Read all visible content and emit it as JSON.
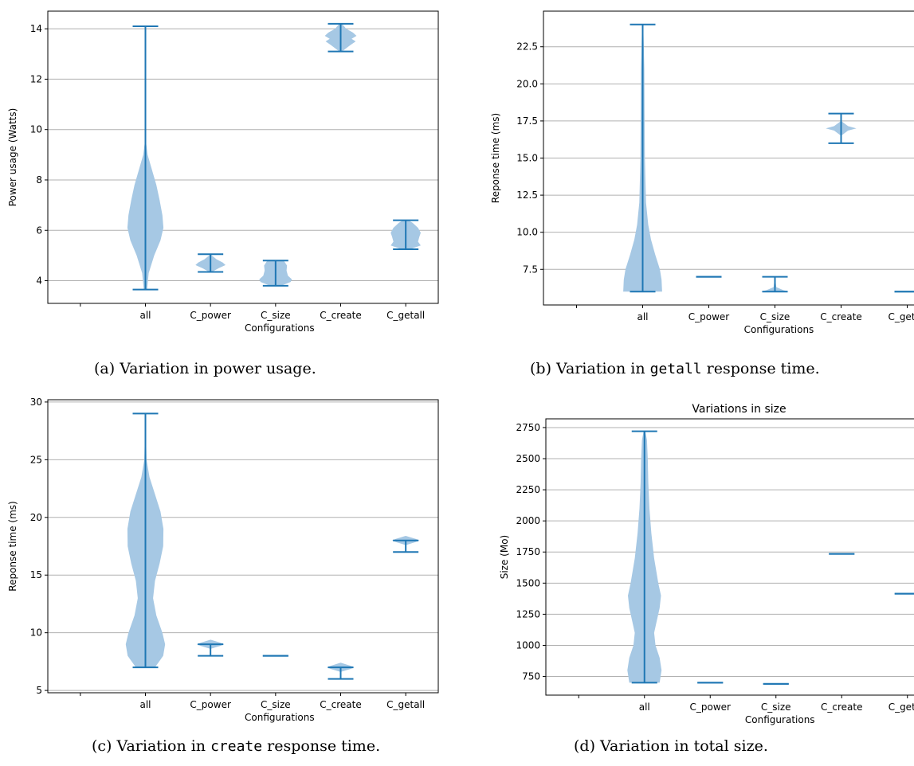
{
  "chart_data": [
    {
      "type": "violin",
      "ylabel": "Power usage (Watts)",
      "xlabel": "Configurations",
      "categories": [
        "all",
        "C_power",
        "C_size",
        "C_create",
        "C_getall"
      ],
      "ylim": [
        3.1,
        14.7
      ],
      "yticks": [
        4,
        6,
        8,
        10,
        12,
        14
      ],
      "ytick_labels": [
        "4",
        "6",
        "8",
        "10",
        "12",
        "14"
      ],
      "grid": "horizontal",
      "series": [
        {
          "min": 3.65,
          "max": 14.1,
          "median": 6.3,
          "density": [
            [
              3.65,
              0.06
            ],
            [
              4.3,
              0.12
            ],
            [
              5.0,
              0.32
            ],
            [
              5.6,
              0.55
            ],
            [
              6.1,
              0.66
            ],
            [
              6.6,
              0.62
            ],
            [
              7.2,
              0.52
            ],
            [
              7.8,
              0.4
            ],
            [
              8.4,
              0.24
            ],
            [
              9.0,
              0.08
            ],
            [
              9.6,
              0.01
            ],
            [
              14.1,
              0.0
            ]
          ]
        },
        {
          "min": 4.35,
          "max": 5.05,
          "median": 4.65,
          "density": [
            [
              4.35,
              0.05
            ],
            [
              4.5,
              0.3
            ],
            [
              4.62,
              0.55
            ],
            [
              4.72,
              0.45
            ],
            [
              4.85,
              0.22
            ],
            [
              5.0,
              0.05
            ],
            [
              5.05,
              0.0
            ]
          ]
        },
        {
          "min": 3.8,
          "max": 4.8,
          "median": 4.2,
          "density": [
            [
              3.8,
              0.2
            ],
            [
              3.95,
              0.55
            ],
            [
              4.05,
              0.6
            ],
            [
              4.2,
              0.45
            ],
            [
              4.4,
              0.4
            ],
            [
              4.6,
              0.42
            ],
            [
              4.8,
              0.3
            ]
          ]
        },
        {
          "min": 13.1,
          "max": 14.2,
          "median": 13.6,
          "density": [
            [
              13.1,
              0.05
            ],
            [
              13.35,
              0.35
            ],
            [
              13.5,
              0.55
            ],
            [
              13.6,
              0.4
            ],
            [
              13.72,
              0.58
            ],
            [
              13.85,
              0.45
            ],
            [
              14.0,
              0.2
            ],
            [
              14.2,
              0.05
            ]
          ]
        },
        {
          "min": 5.25,
          "max": 6.4,
          "median": 5.8,
          "density": [
            [
              5.25,
              0.15
            ],
            [
              5.4,
              0.55
            ],
            [
              5.55,
              0.45
            ],
            [
              5.75,
              0.5
            ],
            [
              5.9,
              0.55
            ],
            [
              6.1,
              0.45
            ],
            [
              6.3,
              0.25
            ],
            [
              6.4,
              0.1
            ]
          ]
        }
      ]
    },
    {
      "type": "violin",
      "ylabel": "Reponse time (ms)",
      "xlabel": "Configurations",
      "categories": [
        "all",
        "C_power",
        "C_size",
        "C_create",
        "C_getall"
      ],
      "ylim": [
        5.1,
        24.9
      ],
      "yticks": [
        7.5,
        10.0,
        12.5,
        15.0,
        17.5,
        20.0,
        22.5
      ],
      "ytick_labels": [
        "7.5",
        "10.0",
        "12.5",
        "15.0",
        "17.5",
        "20.0",
        "22.5"
      ],
      "grid": "horizontal",
      "series": [
        {
          "min": 6.0,
          "max": 24.0,
          "median": 8.0,
          "density": [
            [
              6.0,
              0.7
            ],
            [
              6.8,
              0.68
            ],
            [
              7.5,
              0.62
            ],
            [
              8.5,
              0.45
            ],
            [
              9.5,
              0.3
            ],
            [
              10.5,
              0.2
            ],
            [
              12.0,
              0.12
            ],
            [
              15.0,
              0.08
            ],
            [
              18.0,
              0.07
            ],
            [
              21.0,
              0.06
            ],
            [
              24.0,
              0.02
            ]
          ]
        },
        {
          "min": 7.0,
          "max": 7.0,
          "median": 7.0,
          "density": []
        },
        {
          "min": 6.0,
          "max": 7.0,
          "median": 6.1,
          "density": [
            [
              6.0,
              0.5
            ],
            [
              6.1,
              0.3
            ],
            [
              6.3,
              0.05
            ],
            [
              7.0,
              0.0
            ]
          ]
        },
        {
          "min": 16.0,
          "max": 18.0,
          "median": 17.0,
          "density": [
            [
              16.5,
              0.0
            ],
            [
              16.85,
              0.25
            ],
            [
              17.0,
              0.55
            ],
            [
              17.15,
              0.25
            ],
            [
              17.5,
              0.0
            ]
          ]
        },
        {
          "min": 6.0,
          "max": 6.0,
          "median": 6.0,
          "density": []
        }
      ]
    },
    {
      "type": "violin",
      "ylabel": "Reponse time (ms)",
      "xlabel": "Configurations",
      "categories": [
        "all",
        "C_power",
        "C_size",
        "C_create",
        "C_getall"
      ],
      "ylim": [
        4.8,
        30.2
      ],
      "yticks": [
        5,
        10,
        15,
        20,
        25,
        30
      ],
      "ytick_labels": [
        "5",
        "10",
        "15",
        "20",
        "25",
        "30"
      ],
      "grid": "horizontal",
      "series": [
        {
          "min": 7.0,
          "max": 29.0,
          "median": 17.0,
          "density": [
            [
              7.0,
              0.35
            ],
            [
              8.0,
              0.65
            ],
            [
              9.0,
              0.72
            ],
            [
              10.0,
              0.62
            ],
            [
              11.5,
              0.4
            ],
            [
              13.0,
              0.28
            ],
            [
              14.5,
              0.35
            ],
            [
              16.0,
              0.52
            ],
            [
              17.5,
              0.65
            ],
            [
              19.0,
              0.66
            ],
            [
              20.5,
              0.55
            ],
            [
              22.0,
              0.35
            ],
            [
              23.5,
              0.15
            ],
            [
              25.0,
              0.04
            ],
            [
              29.0,
              0.0
            ]
          ]
        },
        {
          "min": 8.0,
          "max": 9.0,
          "median": 8.5,
          "density": [
            [
              8.6,
              0.0
            ],
            [
              8.85,
              0.35
            ],
            [
              9.0,
              0.5
            ],
            [
              9.15,
              0.35
            ],
            [
              9.4,
              0.0
            ]
          ]
        },
        {
          "min": 8.0,
          "max": 8.0,
          "median": 8.0,
          "density": []
        },
        {
          "min": 6.0,
          "max": 7.0,
          "median": 6.5,
          "density": [
            [
              6.6,
              0.0
            ],
            [
              6.85,
              0.35
            ],
            [
              7.0,
              0.5
            ],
            [
              7.15,
              0.35
            ],
            [
              7.4,
              0.0
            ]
          ]
        },
        {
          "min": 17.0,
          "max": 18.0,
          "median": 17.5,
          "density": [
            [
              17.6,
              0.0
            ],
            [
              17.85,
              0.35
            ],
            [
              18.0,
              0.5
            ],
            [
              18.15,
              0.35
            ],
            [
              18.4,
              0.0
            ]
          ]
        }
      ]
    },
    {
      "type": "violin",
      "title": "Variations in size",
      "ylabel": "Size (Mo)",
      "xlabel": "Configurations",
      "categories": [
        "all",
        "C_power",
        "C_size",
        "C_create",
        "C_getall"
      ],
      "ylim": [
        600,
        2820
      ],
      "yticks": [
        750,
        1000,
        1250,
        1500,
        1750,
        2000,
        2250,
        2500,
        2750
      ],
      "ytick_labels": [
        "750",
        "1000",
        "1250",
        "1500",
        "1750",
        "2000",
        "2250",
        "2500",
        "2750"
      ],
      "grid": "horizontal",
      "series": [
        {
          "min": 700,
          "max": 2720,
          "median": 1300,
          "density": [
            [
              700,
              0.55
            ],
            [
              800,
              0.62
            ],
            [
              900,
              0.55
            ],
            [
              1000,
              0.4
            ],
            [
              1100,
              0.35
            ],
            [
              1200,
              0.45
            ],
            [
              1300,
              0.55
            ],
            [
              1400,
              0.6
            ],
            [
              1500,
              0.5
            ],
            [
              1700,
              0.35
            ],
            [
              1900,
              0.25
            ],
            [
              2100,
              0.18
            ],
            [
              2300,
              0.14
            ],
            [
              2500,
              0.12
            ],
            [
              2650,
              0.09
            ],
            [
              2720,
              0.03
            ]
          ]
        },
        {
          "min": 700,
          "max": 700,
          "median": 700,
          "density": []
        },
        {
          "min": 690,
          "max": 690,
          "median": 690,
          "density": []
        },
        {
          "min": 1735,
          "max": 1735,
          "median": 1735,
          "density": []
        },
        {
          "min": 1415,
          "max": 1415,
          "median": 1415,
          "density": []
        }
      ]
    }
  ],
  "captions": [
    {
      "parts": [
        {
          "text": "(a) Variation in power usage.",
          "mono": false
        }
      ]
    },
    {
      "parts": [
        {
          "text": "(b) Variation in ",
          "mono": false
        },
        {
          "text": "getall",
          "mono": true
        },
        {
          "text": " response time.",
          "mono": false
        }
      ]
    },
    {
      "parts": [
        {
          "text": "(c) Variation in ",
          "mono": false
        },
        {
          "text": "create",
          "mono": true
        },
        {
          "text": " response time.",
          "mono": false
        }
      ]
    },
    {
      "parts": [
        {
          "text": "(d) Variation in total size.",
          "mono": false
        }
      ]
    }
  ],
  "colors": {
    "body": "#a6c8e4",
    "line": "#1f77b4",
    "grid": "#b0b0b0"
  }
}
